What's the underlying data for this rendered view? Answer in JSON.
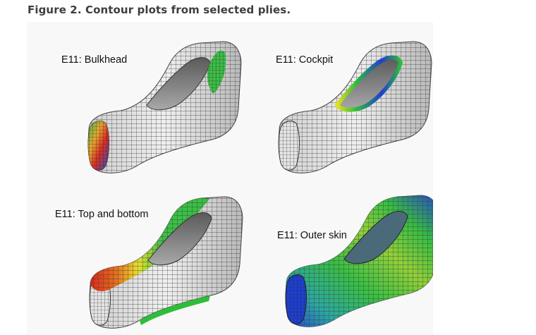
{
  "caption": "Figure 2. Contour plots from selected plies.",
  "panels": [
    {
      "label": "E11: Bulkhead",
      "highlight": "bulkhead"
    },
    {
      "label": "E11: Cockpit",
      "highlight": "cockpit"
    },
    {
      "label": "E11: Top and bottom",
      "highlight": "top-and-bottom"
    },
    {
      "label": "E11: Outer skin",
      "highlight": "outer-skin"
    }
  ],
  "colors": {
    "mesh_base": "#d9d9d9",
    "mesh_line": "#3a3a3a",
    "contour_red": "#d81e10",
    "contour_yellow": "#e8e020",
    "contour_green": "#2ebd3a",
    "contour_blue": "#1d3fcf"
  }
}
